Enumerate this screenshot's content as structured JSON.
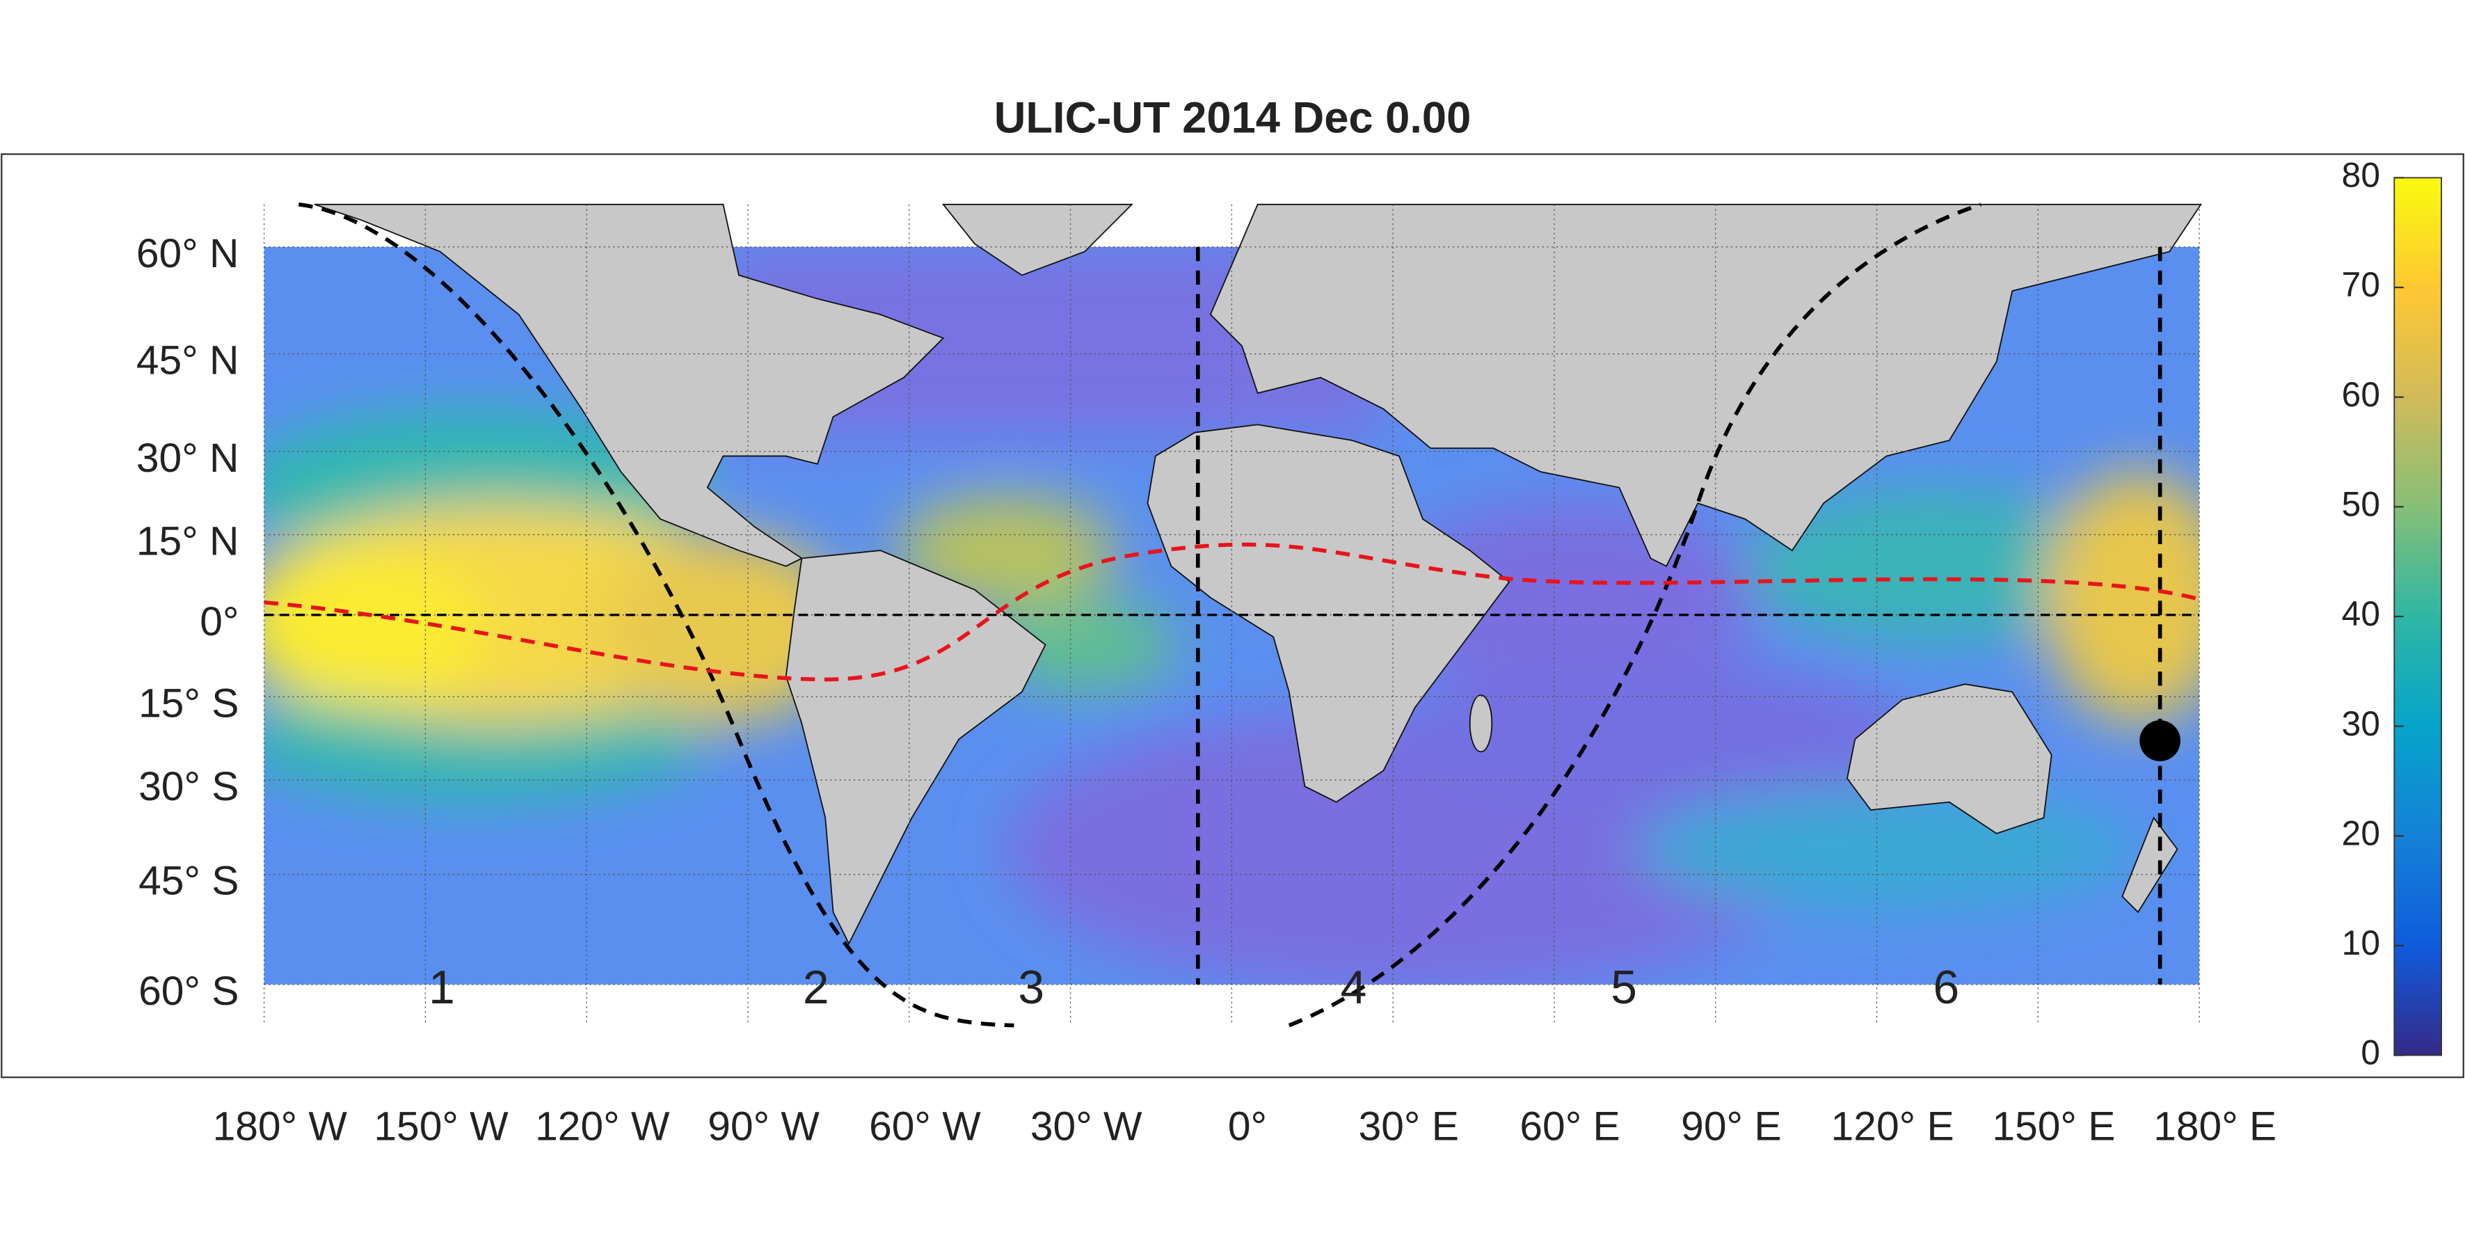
{
  "title": "ULIC-UT 2014 Dec  0.00",
  "latitude_labels": [
    "60° N",
    "45° N",
    "30° N",
    "15° N",
    "0°",
    "15° S",
    "30° S",
    "45° S",
    "60° S"
  ],
  "longitude_labels": [
    "180° W",
    "150° W",
    "120° W",
    "90° W",
    "60° W",
    "30° W",
    "0°",
    "30° E",
    "60° E",
    "90° E",
    "120° E",
    "150° E",
    "180° E"
  ],
  "region_labels": [
    "1",
    "2",
    "3",
    "4",
    "5",
    "6"
  ],
  "colorbar": {
    "range": [
      0,
      80
    ],
    "ticks": [
      0,
      10,
      20,
      30,
      40,
      50,
      60,
      70,
      80
    ]
  }
}
